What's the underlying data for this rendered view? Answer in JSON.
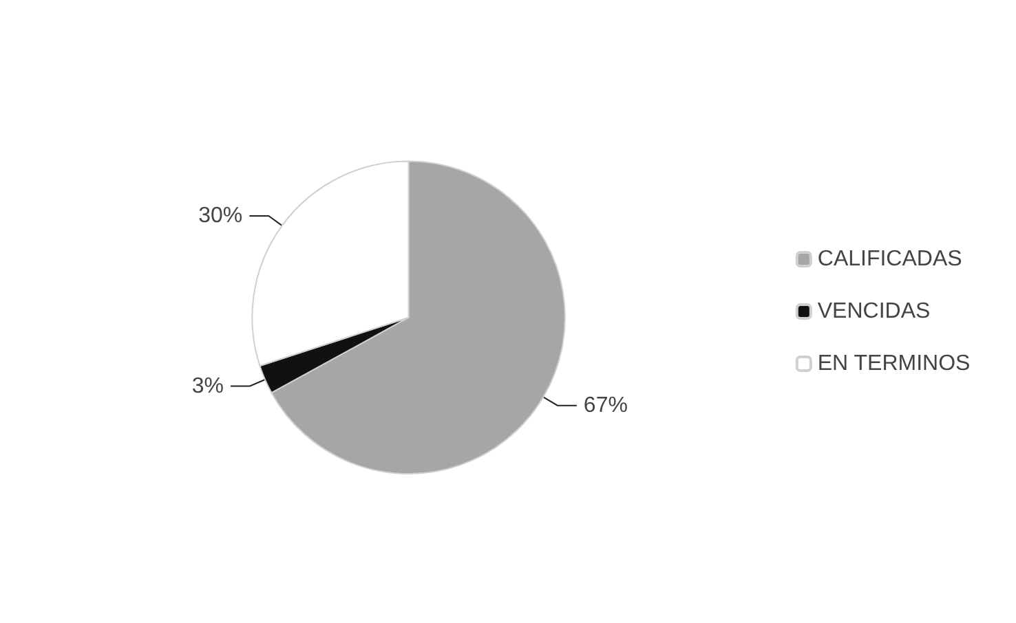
{
  "chart_data": {
    "type": "pie",
    "categories": [
      "CALIFICADAS",
      "VENCIDAS",
      "EN TERMINOS"
    ],
    "values": [
      67,
      3,
      30
    ],
    "colors": [
      "#a6a6a6",
      "#111111",
      "#ffffff"
    ],
    "value_labels": [
      "67%",
      "3%",
      "30%"
    ],
    "legend": "right"
  }
}
